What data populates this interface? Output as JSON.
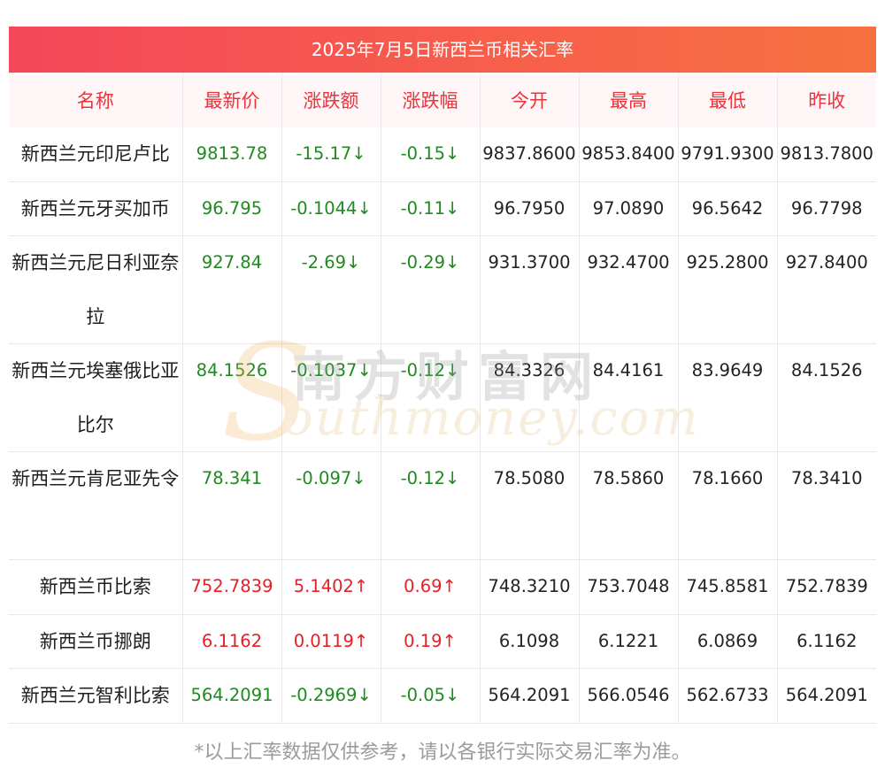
{
  "title": "2025年7月5日新西兰币相关汇率",
  "columns": [
    "名称",
    "最新价",
    "涨跌额",
    "涨跌幅",
    "今开",
    "最高",
    "最低",
    "昨收"
  ],
  "rows": [
    {
      "name": "新西兰元印尼卢比",
      "latest": "9813.78",
      "change": "-15.17↓",
      "pct": "-0.15↓",
      "open": "9837.8600",
      "high": "9853.8400",
      "low": "9791.9300",
      "prev": "9813.7800",
      "dir": "down",
      "tall": false
    },
    {
      "name": "新西兰元牙买加币",
      "latest": "96.795",
      "change": "-0.1044↓",
      "pct": "-0.11↓",
      "open": "96.7950",
      "high": "97.0890",
      "low": "96.5642",
      "prev": "96.7798",
      "dir": "down",
      "tall": false
    },
    {
      "name": "新西兰元尼日利亚奈拉",
      "latest": "927.84",
      "change": "-2.69↓",
      "pct": "-0.29↓",
      "open": "931.3700",
      "high": "932.4700",
      "low": "925.2800",
      "prev": "927.8400",
      "dir": "down",
      "tall": true
    },
    {
      "name": "新西兰元埃塞俄比亚比尔",
      "latest": "84.1526",
      "change": "-0.1037↓",
      "pct": "-0.12↓",
      "open": "84.3326",
      "high": "84.4161",
      "low": "83.9649",
      "prev": "84.1526",
      "dir": "down",
      "tall": true
    },
    {
      "name": "新西兰元肯尼亚先令",
      "latest": "78.341",
      "change": "-0.097↓",
      "pct": "-0.12↓",
      "open": "78.5080",
      "high": "78.5860",
      "low": "78.1660",
      "prev": "78.3410",
      "dir": "down",
      "tall": true
    },
    {
      "name": "新西兰币比索",
      "latest": "752.7839",
      "change": "5.1402↑",
      "pct": "0.69↑",
      "open": "748.3210",
      "high": "753.7048",
      "low": "745.8581",
      "prev": "752.7839",
      "dir": "up",
      "tall": false
    },
    {
      "name": "新西兰币挪朗",
      "latest": "6.1162",
      "change": "0.0119↑",
      "pct": "0.19↑",
      "open": "6.1098",
      "high": "6.1221",
      "low": "6.0869",
      "prev": "6.1162",
      "dir": "up",
      "tall": false
    },
    {
      "name": "新西兰元智利比索",
      "latest": "564.2091",
      "change": "-0.2969↓",
      "pct": "-0.05↓",
      "open": "564.2091",
      "high": "566.0546",
      "low": "562.6733",
      "prev": "564.2091",
      "dir": "down",
      "tall": false
    }
  ],
  "watermark": {
    "cn": "南方财富网",
    "en": "outhmoney.com",
    "s": "S"
  },
  "footnote": "*以上汇率数据仅供参考，请以各银行实际交易汇率为准。",
  "colors": {
    "up": "#e81e25",
    "down": "#1f8a20",
    "header_text": "#e8343c"
  }
}
